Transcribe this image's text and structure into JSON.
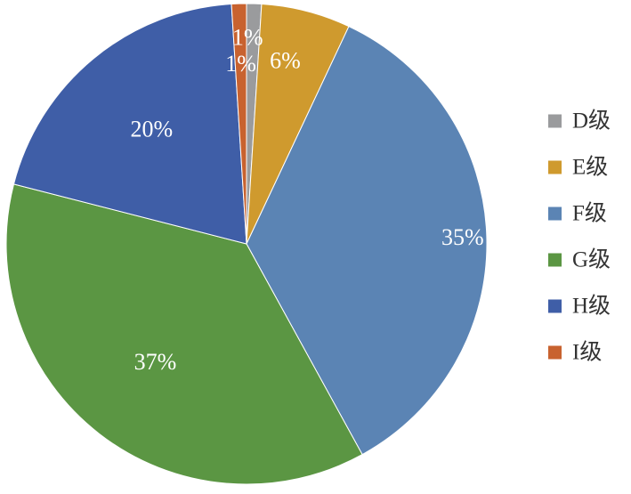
{
  "chart_data": {
    "type": "pie",
    "categories": [
      "D级",
      "E级",
      "F级",
      "G级",
      "H级",
      "I级"
    ],
    "values": [
      1,
      6,
      35,
      37,
      20,
      1
    ],
    "data_labels": [
      "1%",
      "6%",
      "35%",
      "37%",
      "20%",
      "1%"
    ],
    "colors": [
      "#9a9b9d",
      "#cf9a2e",
      "#5b84b4",
      "#5b9643",
      "#3f5ea7",
      "#c8622f"
    ],
    "legend_position": "right",
    "start_angle_deg": 0,
    "direction": "clockwise",
    "title": ""
  }
}
